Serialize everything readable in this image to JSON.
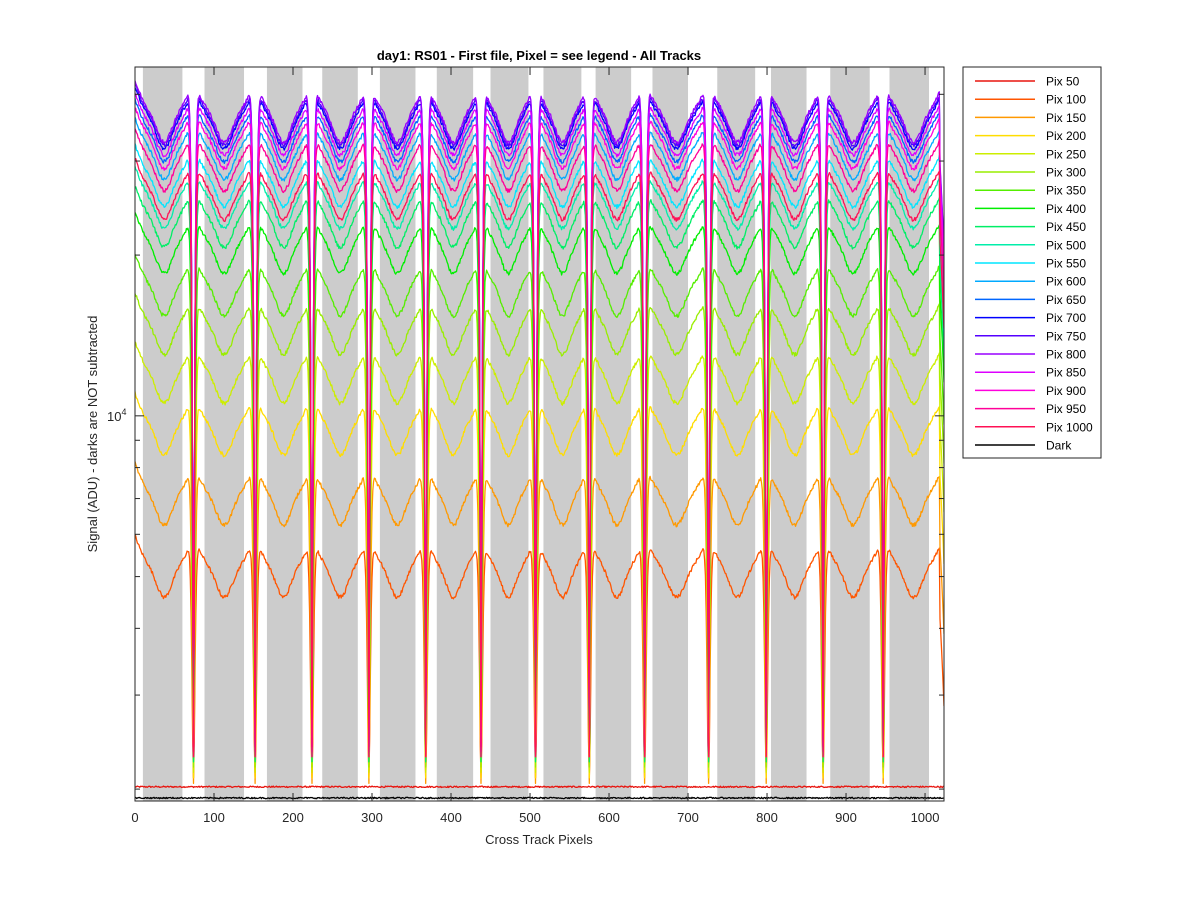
{
  "chart_data": {
    "type": "line",
    "title": "day1: RS01 - First file, Pixel = see legend - All Tracks",
    "xlabel": "Cross Track Pixels",
    "ylabel": "Signal (ADU) - darks are NOT subtracted",
    "xlim": [
      0,
      1024
    ],
    "x_ticks": [
      0,
      100,
      200,
      300,
      400,
      500,
      600,
      700,
      800,
      900,
      1000
    ],
    "y_scale": "log",
    "ylim": [
      1900,
      45000
    ],
    "y_tick_label": {
      "base": "10",
      "exponent": "4",
      "value": 10000
    },
    "y_minor_ticks": [
      2000,
      3000,
      4000,
      5000,
      6000,
      7000,
      8000,
      9000,
      20000,
      30000,
      40000
    ],
    "grid": false,
    "legend_placement": "outside-right",
    "track_bands": [
      [
        10,
        60
      ],
      [
        88,
        138
      ],
      [
        167,
        212
      ],
      [
        237,
        282
      ],
      [
        310,
        355
      ],
      [
        382,
        428
      ],
      [
        450,
        498
      ],
      [
        517,
        565
      ],
      [
        583,
        628
      ],
      [
        655,
        700
      ],
      [
        737,
        785
      ],
      [
        805,
        850
      ],
      [
        880,
        930
      ],
      [
        955,
        1005
      ]
    ],
    "gap_centers": [
      74,
      152,
      224,
      296,
      368,
      438,
      507,
      575,
      645,
      726,
      799,
      871,
      947
    ],
    "track_shape": {
      "edge_rise_fraction": 0.15,
      "center_dip_fraction": 0.12,
      "noise_fraction": 0.015
    },
    "series": [
      {
        "name": "Pix 50",
        "color": "#e8150f",
        "level": 2020,
        "gap_level": 1930
      },
      {
        "name": "Pix 100",
        "color": "#ff5500",
        "level": 5200,
        "gap_level": 2100
      },
      {
        "name": "Pix 150",
        "color": "#ff9900",
        "level": 7100,
        "gap_level": 2050
      },
      {
        "name": "Pix 200",
        "color": "#ffdd00",
        "level": 9600,
        "gap_level": 2100
      },
      {
        "name": "Pix 250",
        "color": "#ccee00",
        "level": 12000,
        "gap_level": 2150
      },
      {
        "name": "Pix 300",
        "color": "#99ee00",
        "level": 14800,
        "gap_level": 2200
      },
      {
        "name": "Pix 350",
        "color": "#55ee00",
        "level": 17500,
        "gap_level": 2250
      },
      {
        "name": "Pix 400",
        "color": "#00ee00",
        "level": 21000,
        "gap_level": 2300
      },
      {
        "name": "Pix 450",
        "color": "#00ee66",
        "level": 23500,
        "gap_level": 2250
      },
      {
        "name": "Pix 500",
        "color": "#00eeaa",
        "level": 25500,
        "gap_level": 2300
      },
      {
        "name": "Pix 550",
        "color": "#00e5ff",
        "level": 28000,
        "gap_level": 2300
      },
      {
        "name": "Pix 600",
        "color": "#00aaff",
        "level": 31500,
        "gap_level": 2350
      },
      {
        "name": "Pix 650",
        "color": "#0066ff",
        "level": 34000,
        "gap_level": 2350
      },
      {
        "name": "Pix 700",
        "color": "#0000ff",
        "level": 36000,
        "gap_level": 2400
      },
      {
        "name": "Pix 750",
        "color": "#5500ff",
        "level": 36500,
        "gap_level": 2400
      },
      {
        "name": "Pix 800",
        "color": "#9900ff",
        "level": 37000,
        "gap_level": 2400
      },
      {
        "name": "Pix 850",
        "color": "#dd00ff",
        "level": 35000,
        "gap_level": 2400
      },
      {
        "name": "Pix 900",
        "color": "#ff00dd",
        "level": 33000,
        "gap_level": 2350
      },
      {
        "name": "Pix 950",
        "color": "#ff0099",
        "level": 30000,
        "gap_level": 2300
      },
      {
        "name": "Pix 1000",
        "color": "#ff1155",
        "level": 26500,
        "gap_level": 2300
      },
      {
        "name": "Dark",
        "color": "#000000",
        "level": 1925,
        "gap_level": 1925
      }
    ]
  }
}
